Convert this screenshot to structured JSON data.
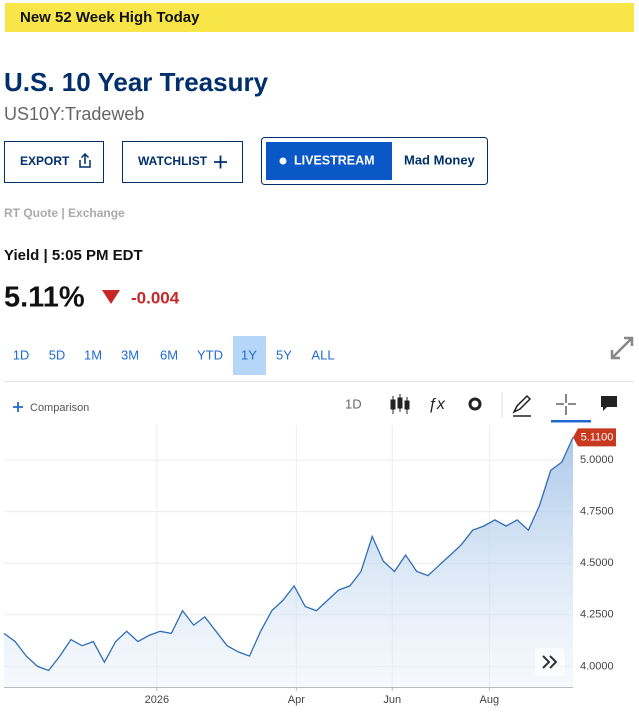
{
  "banner": "New 52 Week High Today",
  "header": {
    "title": "U.S. 10 Year Treasury",
    "symbol": "US10Y:Tradeweb"
  },
  "buttons": {
    "export": "EXPORT",
    "watchlist": "WATCHLIST",
    "livestream": "LIVESTREAM",
    "show": "Mad Money"
  },
  "quote_source": "RT Quote | Exchange",
  "yield_label": "Yield | 5:05 PM EDT",
  "price": "5.11%",
  "change": "-0.004",
  "ranges": [
    "1D",
    "5D",
    "1M",
    "3M",
    "6M",
    "YTD",
    "1Y",
    "5Y",
    "ALL"
  ],
  "selected_range": 6,
  "toolbar": {
    "comparison": "Comparison",
    "interval": "1D"
  },
  "chart_data": {
    "type": "area",
    "series": [
      {
        "color": "#2f6db5",
        "values": [
          4.16,
          4.12,
          4.05,
          4.0,
          3.98,
          4.05,
          4.13,
          4.1,
          4.12,
          4.02,
          4.12,
          4.17,
          4.12,
          4.15,
          4.17,
          4.16,
          4.27,
          4.2,
          4.24,
          4.17,
          4.1,
          4.07,
          4.05,
          4.17,
          4.27,
          4.32,
          4.39,
          4.29,
          4.27,
          4.32,
          4.37,
          4.39,
          4.46,
          4.63,
          4.51,
          4.46,
          4.54,
          4.46,
          4.44,
          4.49,
          4.54,
          4.59,
          4.66,
          4.68,
          4.71,
          4.68,
          4.71,
          4.66,
          4.78,
          4.95,
          4.99,
          5.11
        ],
        "value_labels": [
          null,
          null,
          null,
          null,
          null,
          null,
          null,
          null,
          null,
          null,
          null,
          null,
          null,
          null,
          null,
          null,
          null,
          null,
          null,
          null,
          null,
          null,
          null,
          null,
          null,
          null,
          null,
          null,
          null,
          null,
          null,
          null,
          null,
          null,
          null,
          null,
          null,
          null,
          null,
          null,
          null,
          null,
          null,
          null,
          null,
          null,
          null,
          null,
          null,
          null,
          null,
          "5.1100"
        ]
      }
    ],
    "xlim": [
      0,
      51
    ],
    "xticks": [
      {
        "value": 13.7,
        "label": "2026"
      },
      {
        "value": 26.2,
        "label": "Apr"
      },
      {
        "value": 34.8,
        "label": "Jun"
      },
      {
        "value": 43.5,
        "label": "Aug"
      }
    ],
    "ylim": [
      3.9,
      5.17
    ],
    "yticks": [
      {
        "value": 4.0,
        "label": "4.0000"
      },
      {
        "value": 4.25,
        "label": "4.2500"
      },
      {
        "value": 4.5,
        "label": "4.5000"
      },
      {
        "value": 4.75,
        "label": "4.7500"
      },
      {
        "value": 5.0,
        "label": "5.0000"
      }
    ],
    "grid": true,
    "label_color": "#c8381e"
  }
}
